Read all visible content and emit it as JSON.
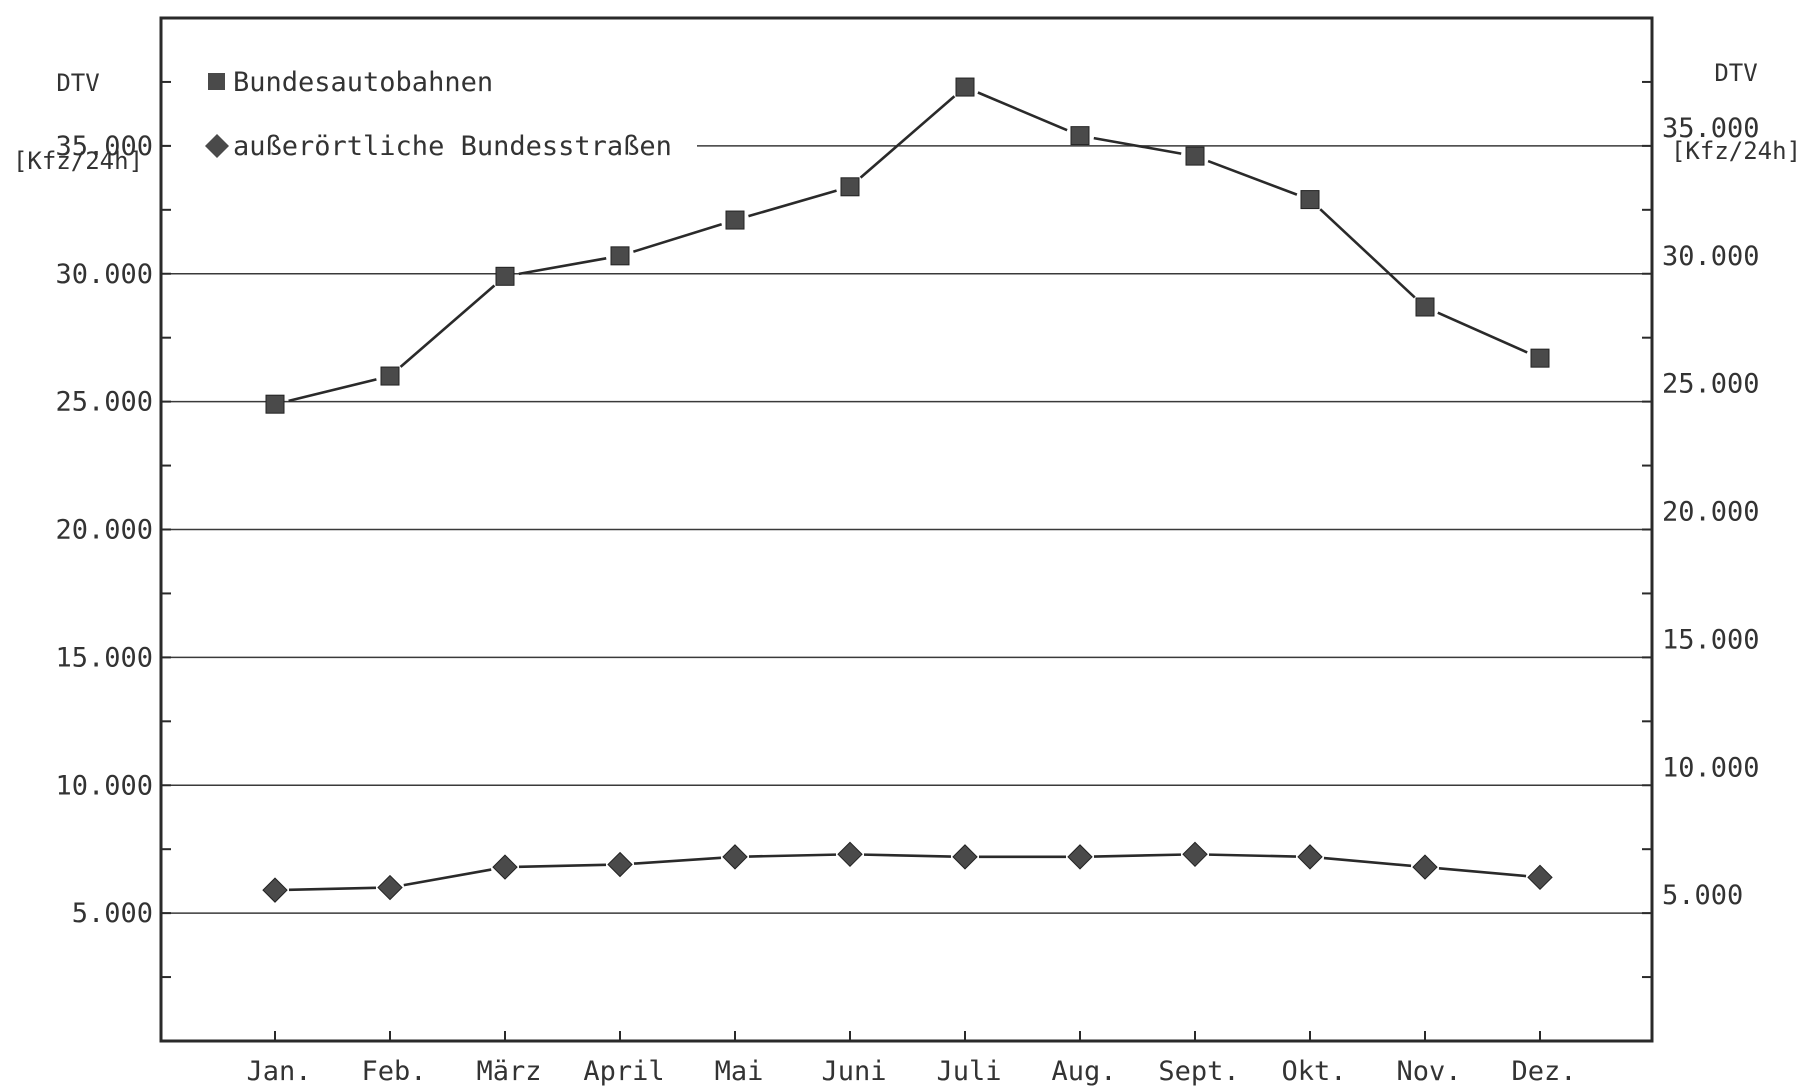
{
  "chart_data": {
    "type": "line",
    "y_axis_left_label": [
      "DTV",
      "[Kfz/24h]"
    ],
    "y_axis_right_label": [
      "DTV",
      "[Kfz/24h]"
    ],
    "categories": [
      "Jan.",
      "Feb.",
      "März",
      "April",
      "Mai",
      "Juni",
      "Juli",
      "Aug.",
      "Sept.",
      "Okt.",
      "Nov.",
      "Dez."
    ],
    "ylim": [
      0,
      40000
    ],
    "y_ticks": [
      5000,
      10000,
      15000,
      20000,
      25000,
      30000,
      35000
    ],
    "y_tick_labels": [
      "5.000",
      "10.000",
      "15.000",
      "20.000",
      "25.000",
      "30.000",
      "35.000"
    ],
    "grid": "horizontal",
    "legend_position": "top-left",
    "series": [
      {
        "name": "Bundesautobahnen",
        "marker": "square",
        "values": [
          24900,
          26000,
          29900,
          30700,
          32100,
          33400,
          37300,
          35400,
          34600,
          32900,
          28700,
          26700
        ]
      },
      {
        "name": "außerörtliche Bundesstraßen",
        "marker": "diamond",
        "values": [
          5900,
          6000,
          6800,
          6900,
          7200,
          7300,
          7200,
          7200,
          7300,
          7200,
          6800,
          6400
        ]
      }
    ],
    "colors": {
      "line": "#2a2a2a",
      "marker": "#4a4a4a",
      "frame": "#2a2a2a",
      "grid": "#3a3a3a"
    }
  }
}
